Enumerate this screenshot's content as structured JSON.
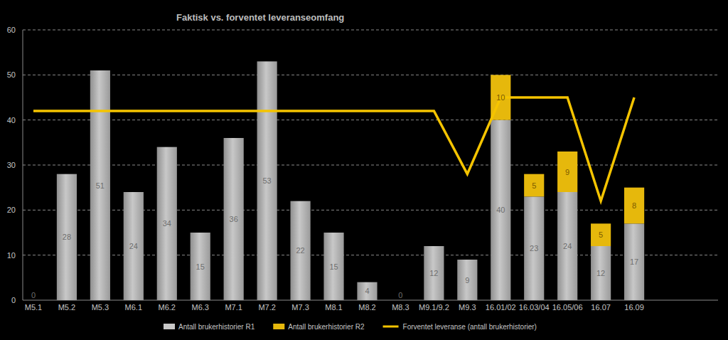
{
  "chart_data": {
    "type": "bar",
    "title": "Faktisk vs. forventet leveranseomfang",
    "categories": [
      "M5.1",
      "M5.2",
      "M5.3",
      "M6.1",
      "M6.2",
      "M6.3",
      "M7.1",
      "M7.2",
      "M7.3",
      "M8.1",
      "M8.2",
      "M8.3",
      "M9.1/9.2",
      "M9.3",
      "16.01/02",
      "16.03/04",
      "16.05/06",
      "16.07",
      "16.09"
    ],
    "series": [
      {
        "name": "Antall brukerhistorier R1",
        "color": "#c8c8c8",
        "values": [
          0,
          28,
          51,
          24,
          34,
          15,
          36,
          53,
          22,
          15,
          4,
          0,
          12,
          9,
          40,
          23,
          24,
          12,
          17
        ]
      },
      {
        "name": "Antall brukerhistorier R2",
        "color": "#e6b80c",
        "values": [
          null,
          null,
          null,
          null,
          null,
          null,
          null,
          null,
          null,
          null,
          null,
          null,
          null,
          null,
          10,
          5,
          9,
          5,
          8
        ]
      },
      {
        "name": "Forventet leveranse (antall brukerhistorier)",
        "type": "line",
        "color": "#f5c400",
        "line_style": "solid",
        "values": [
          42,
          42,
          42,
          42,
          42,
          42,
          42,
          42,
          42,
          42,
          42,
          42,
          42,
          28,
          45,
          45,
          45,
          22,
          45
        ]
      }
    ],
    "stacked": true,
    "data_labels": true,
    "ylim": [
      0,
      60
    ],
    "yticks": [
      0,
      10,
      20,
      30,
      40,
      50,
      60
    ],
    "grid": true,
    "legend": "bottom"
  }
}
